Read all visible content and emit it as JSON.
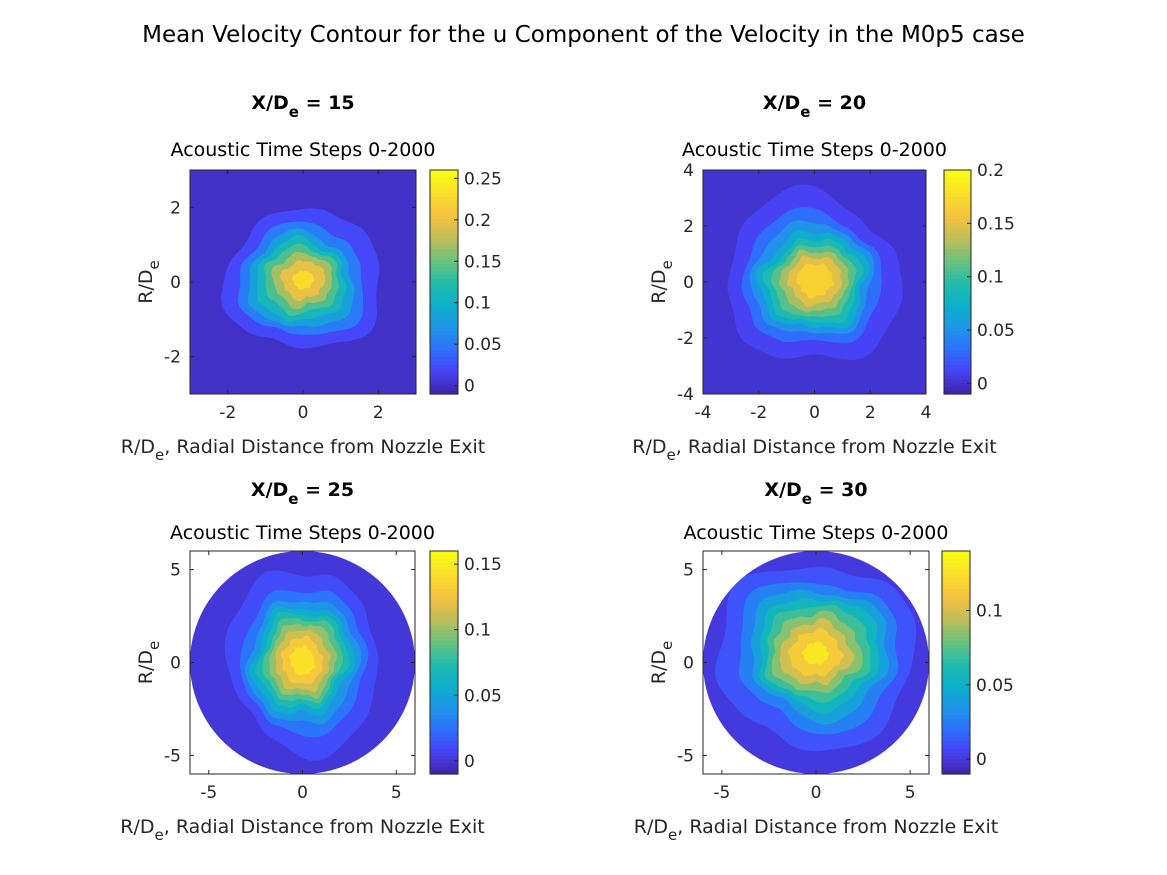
{
  "figure_title": "Mean Velocity Contour for the u Component of the Velocity in the M0p5 case",
  "colormap": [
    "#3e26a8",
    "#4743f8",
    "#2c73fc",
    "#1e97e5",
    "#0bb1c8",
    "#24bca8",
    "#6cc27c",
    "#c1be59",
    "#f5c240",
    "#f9dd2b",
    "#f9fb14"
  ],
  "chart_data": [
    {
      "type": "heatmap",
      "title_main": "X/D",
      "title_sub": "e",
      "title_tail": " = 15",
      "subtitle": "Acoustic Time Steps 0-2000",
      "xlabel_pre": "R/D",
      "xlabel_sub": "e",
      "xlabel_post": ", Radial Distance from Nozzle Exit",
      "ylabel_pre": "R/D",
      "ylabel_sub": "e",
      "xlim": [
        -3,
        3
      ],
      "ylim": [
        -3,
        3
      ],
      "xticks": [
        -2,
        0,
        2
      ],
      "yticks": [
        -2,
        0,
        2
      ],
      "domain": "square",
      "clim": [
        -0.01,
        0.26
      ],
      "cticks": [
        0,
        0.05,
        0.1,
        0.15,
        0.2,
        0.25
      ],
      "ctick_labels": [
        "0",
        "0.05",
        "0.1",
        "0.15",
        "0.2",
        "0.25"
      ],
      "peak": 0.24,
      "center": [
        0,
        0.05
      ],
      "spread": [
        0.95,
        0.85
      ],
      "levels": [
        0.02,
        0.05,
        0.08,
        0.11,
        0.14,
        0.17,
        0.2,
        0.23
      ]
    },
    {
      "type": "heatmap",
      "title_main": "X/D",
      "title_sub": "e",
      "title_tail": " = 20",
      "subtitle": "Acoustic Time Steps 0-2000",
      "xlabel_pre": "R/D",
      "xlabel_sub": "e",
      "xlabel_post": ", Radial Distance from Nozzle Exit",
      "ylabel_pre": "R/D",
      "ylabel_sub": "e",
      "xlim": [
        -4,
        4
      ],
      "ylim": [
        -4,
        4
      ],
      "xticks": [
        -4,
        -2,
        0,
        2,
        4
      ],
      "yticks": [
        -4,
        -2,
        0,
        2,
        4
      ],
      "domain": "square",
      "clim": [
        -0.01,
        0.2
      ],
      "cticks": [
        0,
        0.05,
        0.1,
        0.15,
        0.2
      ],
      "ctick_labels": [
        "0",
        "0.05",
        "0.1",
        "0.15",
        "0.2"
      ],
      "peak": 0.19,
      "center": [
        0,
        0.05
      ],
      "spread": [
        1.35,
        1.25
      ],
      "levels": [
        0.01,
        0.03,
        0.05,
        0.07,
        0.09,
        0.11,
        0.13,
        0.15,
        0.17
      ]
    },
    {
      "type": "heatmap",
      "title_main": "X/D",
      "title_sub": "e",
      "title_tail": " = 25",
      "subtitle": "Acoustic Time Steps 0-2000",
      "xlabel_pre": "R/D",
      "xlabel_sub": "e",
      "xlabel_post": ", Radial Distance from Nozzle Exit",
      "ylabel_pre": "R/D",
      "ylabel_sub": "e",
      "xlim": [
        -6,
        6
      ],
      "ylim": [
        -6,
        6
      ],
      "xticks": [
        -5,
        0,
        5
      ],
      "yticks": [
        -5,
        0,
        5
      ],
      "domain": "circle",
      "clim": [
        -0.01,
        0.16
      ],
      "cticks": [
        0,
        0.05,
        0.1,
        0.15
      ],
      "ctick_labels": [
        "0",
        "0.05",
        "0.1",
        "0.15"
      ],
      "peak": 0.155,
      "center": [
        0,
        0.1
      ],
      "spread": [
        1.8,
        2.1
      ],
      "levels": [
        0.01,
        0.025,
        0.04,
        0.055,
        0.07,
        0.085,
        0.1,
        0.115,
        0.13,
        0.145
      ]
    },
    {
      "type": "heatmap",
      "title_main": "X/D",
      "title_sub": "e",
      "title_tail": " = 30",
      "subtitle": "Acoustic Time Steps 0-2000",
      "xlabel_pre": "R/D",
      "xlabel_sub": "e",
      "xlabel_post": ", Radial Distance from Nozzle Exit",
      "ylabel_pre": "R/D",
      "ylabel_sub": "e",
      "xlim": [
        -6,
        6
      ],
      "ylim": [
        -6,
        6
      ],
      "xticks": [
        -5,
        0,
        5
      ],
      "yticks": [
        -5,
        0,
        5
      ],
      "domain": "circle",
      "clim": [
        -0.01,
        0.14
      ],
      "cticks": [
        0,
        0.05,
        0.1
      ],
      "ctick_labels": [
        "0",
        "0.05",
        "0.1"
      ],
      "peak": 0.135,
      "center": [
        0,
        0.5
      ],
      "spread": [
        2.4,
        2.2
      ],
      "levels": [
        0.01,
        0.025,
        0.04,
        0.055,
        0.07,
        0.085,
        0.1,
        0.115,
        0.13
      ]
    }
  ]
}
